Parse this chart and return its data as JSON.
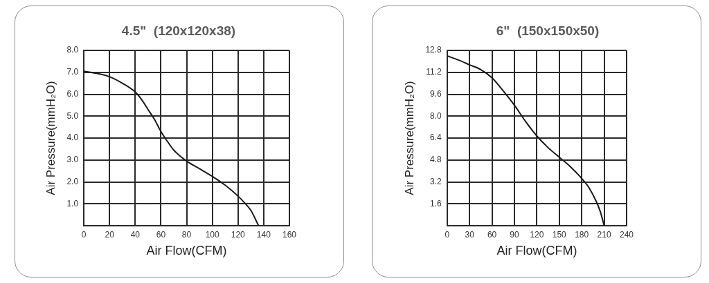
{
  "chart_data": [
    {
      "type": "line",
      "title": "4.5\"  (120x120x38)",
      "xlabel": "Air Flow(CFM)",
      "ylabel": "Air Pressure(mmH₂O)",
      "x": [
        0,
        10,
        20,
        30,
        40,
        45,
        50,
        55,
        60,
        65,
        70,
        80,
        90,
        100,
        110,
        120,
        125,
        130,
        136
      ],
      "series": [
        {
          "color": "#1a1a1a",
          "values": [
            7.05,
            6.95,
            6.8,
            6.5,
            6.1,
            5.75,
            5.3,
            4.85,
            4.3,
            3.85,
            3.45,
            2.95,
            2.6,
            2.25,
            1.85,
            1.35,
            1.05,
            0.7,
            0
          ]
        }
      ],
      "xlim": [
        0,
        160
      ],
      "ylim": [
        0,
        8
      ],
      "xticks": [
        0,
        20,
        40,
        60,
        80,
        100,
        120,
        140,
        160
      ],
      "yticks": [
        {
          "value": 0,
          "label": null
        },
        {
          "value": 1,
          "label": "1.0"
        },
        {
          "value": 2,
          "label": "2.0"
        },
        {
          "value": 3,
          "label": "3.0"
        },
        {
          "value": 4,
          "label": "4.0"
        },
        {
          "value": 5,
          "label": "5.0"
        },
        {
          "value": 6,
          "label": "6.0"
        },
        {
          "value": 7,
          "label": "7.0"
        },
        {
          "value": 8,
          "label": "8.0"
        }
      ],
      "grid": true,
      "legend": false
    },
    {
      "type": "line",
      "title": "6\"  (150x150x50)",
      "xlabel": "Air Flow(CFM)",
      "ylabel": "Air Pressure(mmH₂O)",
      "x": [
        0,
        15,
        30,
        45,
        60,
        75,
        90,
        105,
        120,
        135,
        150,
        165,
        180,
        190,
        200,
        205,
        210
      ],
      "series": [
        {
          "color": "#1a1a1a",
          "values": [
            12.4,
            12.1,
            11.75,
            11.4,
            10.8,
            9.85,
            8.8,
            7.6,
            6.55,
            5.7,
            5.0,
            4.3,
            3.45,
            2.75,
            1.7,
            1.0,
            0
          ]
        }
      ],
      "xlim": [
        0,
        240
      ],
      "ylim": [
        0,
        12.8
      ],
      "xticks": [
        0,
        30,
        60,
        90,
        120,
        150,
        180,
        210,
        240
      ],
      "yticks": [
        {
          "value": 0,
          "label": null
        },
        1.6,
        3.2,
        4.8,
        6.4,
        {
          "value": 8,
          "label": "8.0"
        },
        9.6,
        11.2,
        12.8
      ],
      "grid": true,
      "legend": false
    }
  ]
}
